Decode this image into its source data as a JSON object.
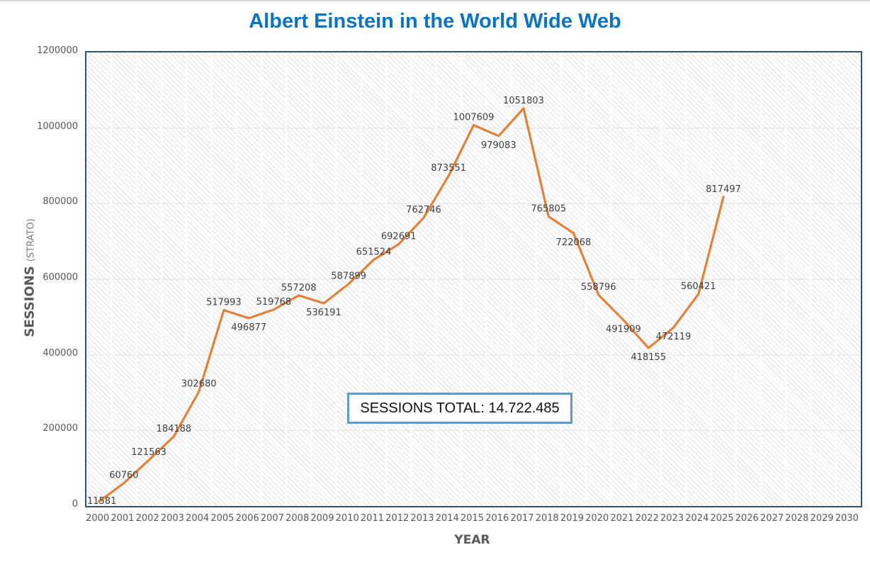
{
  "chart_data": {
    "type": "line",
    "title": "Albert Einstein in the World Wide Web",
    "xlabel": "YEAR",
    "ylabel": "SESSIONS",
    "ylabel_suffix": "(STRATO)",
    "categories": [
      "2000",
      "2001",
      "2002",
      "2003",
      "2004",
      "2005",
      "2006",
      "2007",
      "2008",
      "2009",
      "2010",
      "2011",
      "2012",
      "2013",
      "2014",
      "2015",
      "2016",
      "2017",
      "2018",
      "2019",
      "2020",
      "2021",
      "2022",
      "2023",
      "2024",
      "2025",
      "2026",
      "2027",
      "2028",
      "2029",
      "2030"
    ],
    "series": [
      {
        "name": "Sessions",
        "values": [
          11581,
          60760,
          121563,
          184188,
          302680,
          517993,
          496877,
          519768,
          557208,
          536191,
          587899,
          651524,
          692691,
          762746,
          873551,
          1007609,
          979083,
          1051803,
          765805,
          722068,
          558796,
          491909,
          418155,
          472119,
          560421,
          817497
        ]
      }
    ],
    "ylim": [
      0,
      1200000
    ],
    "y_ticks": [
      0,
      200000,
      400000,
      600000,
      800000,
      1000000,
      1200000
    ],
    "grid": true,
    "legend": "none",
    "data_labels": true,
    "labels_below_indices": [
      6,
      9,
      16,
      19,
      21,
      22,
      23
    ],
    "annotation": "SESSIONS TOTAL: 14.722.485"
  },
  "colors": {
    "title": "#0b74c0",
    "line": "#e0823c",
    "plot_border": "#34536e",
    "tick_text": "#595959",
    "data_label_text": "#3f3f3f",
    "annotation_border": "#5c9bd6",
    "hatch": "#e1e1e1",
    "grid_vertical": "#ffffff",
    "grid_horizontal": "#e9e9e9"
  }
}
